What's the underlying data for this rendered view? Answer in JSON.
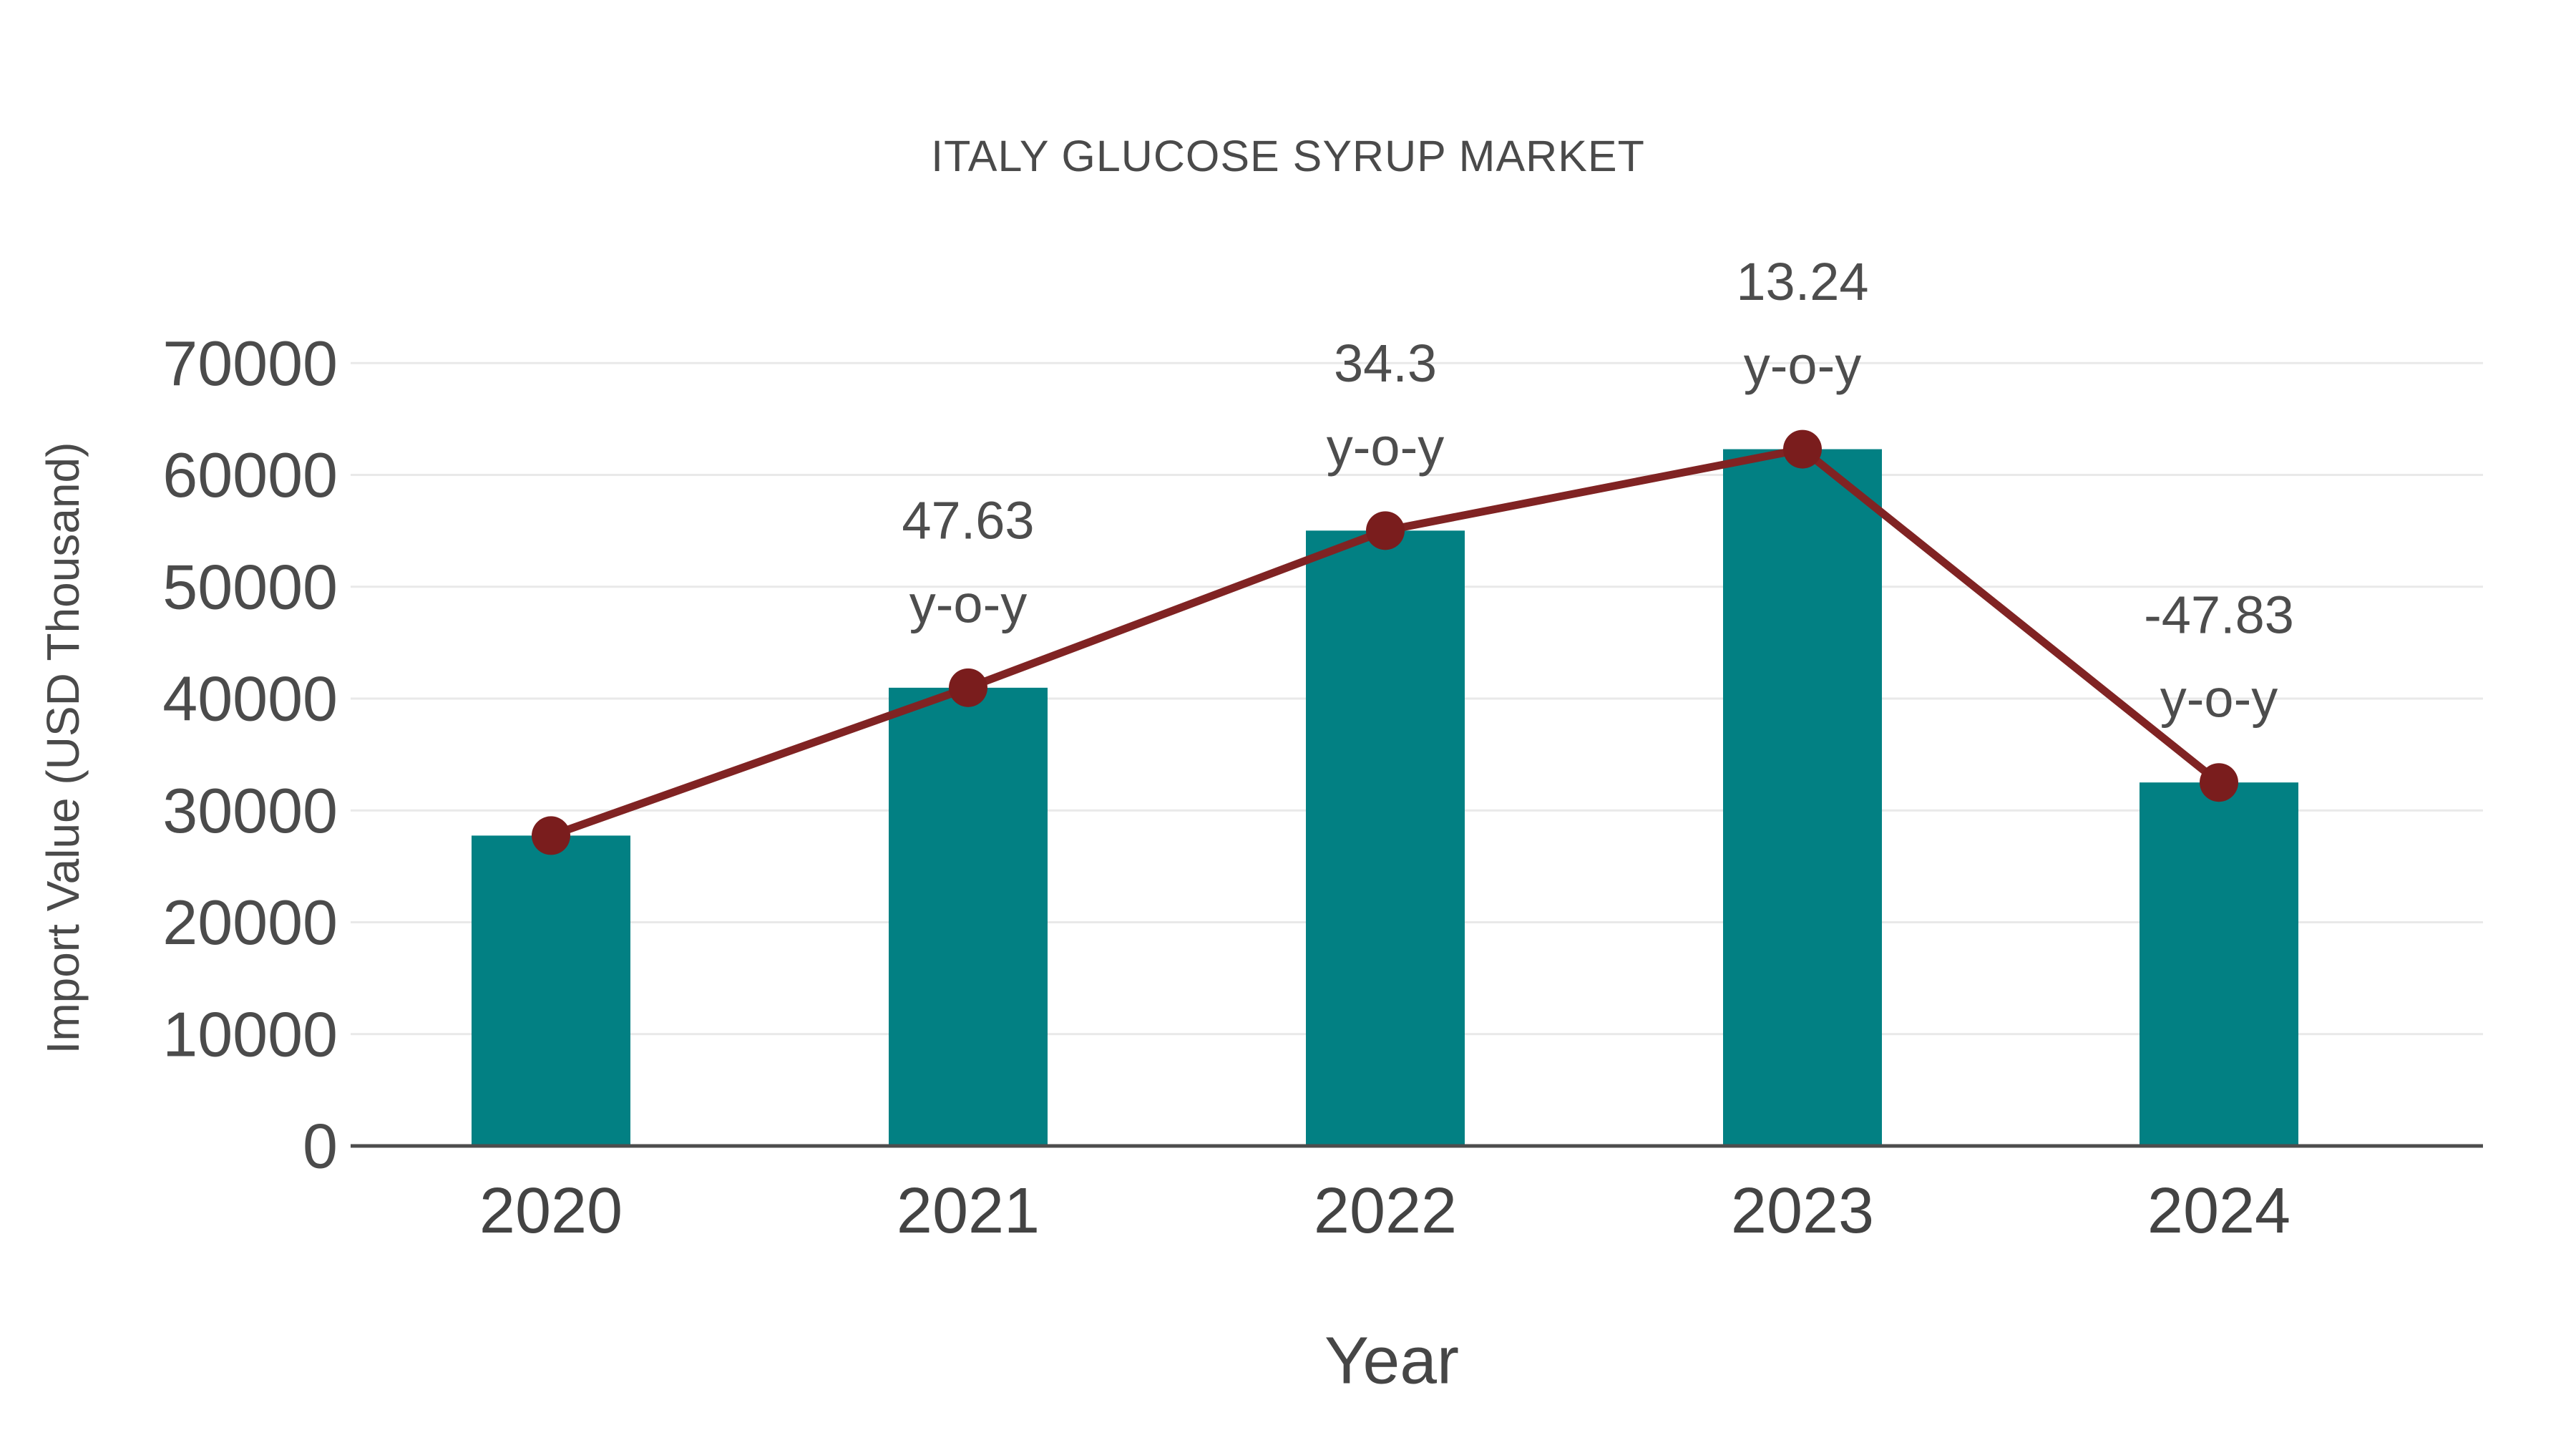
{
  "chart_data": {
    "type": "bar",
    "combo": "bar+line",
    "title": "ITALY GLUCOSE SYRUP MARKET",
    "xlabel": "Year",
    "ylabel": "Import Value (USD Thousand)",
    "categories": [
      "2020",
      "2021",
      "2022",
      "2023",
      "2024"
    ],
    "series": [
      {
        "name": "Import Value",
        "type": "bar",
        "values": [
          27750,
          40970,
          55020,
          62300,
          32500
        ]
      },
      {
        "name": "Year-over-year trend",
        "type": "line",
        "values": [
          27750,
          40970,
          55020,
          62300,
          32500
        ]
      }
    ],
    "annotations": [
      {
        "category": "2021",
        "value": "47.63",
        "suffix": "y-o-y"
      },
      {
        "category": "2022",
        "value": "34.3",
        "suffix": "y-o-y"
      },
      {
        "category": "2023",
        "value": "13.24",
        "suffix": "y-o-y"
      },
      {
        "category": "2024",
        "value": "-47.83",
        "suffix": "y-o-y"
      }
    ],
    "yticks": [
      "0",
      "10000",
      "20000",
      "30000",
      "40000",
      "50000",
      "60000",
      "70000"
    ],
    "ylim": [
      0,
      70000
    ],
    "grid": true,
    "legend_position": "none",
    "colors": {
      "bar": "#028083",
      "line": "#802323",
      "marker": "#7a1d1d",
      "gridline": "#e9e9e9",
      "axis": "#4d4d4d",
      "text": "#4a4a4a"
    }
  }
}
